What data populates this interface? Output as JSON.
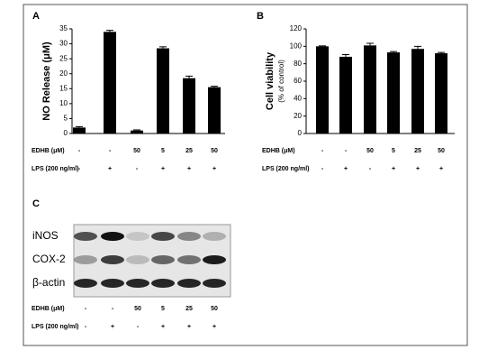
{
  "chart_data": [
    {
      "type": "bar",
      "label": "A",
      "ylabel": "NO Release (μM)",
      "categories": [
        null,
        null,
        null,
        null,
        null,
        null
      ],
      "values": [
        2,
        34,
        1,
        28.5,
        18.5,
        15.5
      ],
      "errors": [
        0.3,
        0.5,
        0.2,
        0.5,
        0.7,
        0.3
      ],
      "color": "#000000",
      "ylim": [
        0,
        35
      ],
      "yticks": [
        0,
        5,
        10,
        15,
        20,
        25,
        30,
        35
      ],
      "treatments": [
        {
          "name": "EDHB (μM)",
          "values": [
            "-",
            "-",
            "50",
            "5",
            "25",
            "50"
          ]
        },
        {
          "name": "LPS (200 ng/ml)",
          "values": [
            "-",
            "+",
            "-",
            "+",
            "+",
            "+"
          ]
        }
      ]
    },
    {
      "type": "bar",
      "label": "B",
      "ylabel": "Cell viability",
      "ylabel_sub": "(% of control)",
      "categories": [
        null,
        null,
        null,
        null,
        null,
        null
      ],
      "values": [
        100,
        88,
        101,
        93,
        97,
        92
      ],
      "errors": [
        0.5,
        2.5,
        2.5,
        1,
        3,
        1
      ],
      "color": "#000000",
      "ylim": [
        0,
        120
      ],
      "yticks": [
        0,
        20,
        40,
        60,
        80,
        100,
        120
      ],
      "treatments": [
        {
          "name": "EDHB (μM)",
          "values": [
            "-",
            "-",
            "50",
            "5",
            "25",
            "50"
          ]
        },
        {
          "name": "LPS (200 ng/ml)",
          "values": [
            "-",
            "+",
            "-",
            "+",
            "+",
            "+"
          ]
        }
      ]
    }
  ],
  "blot": {
    "label": "C",
    "rows": [
      "iNOS",
      "COX-2",
      "β-actin"
    ],
    "treatments": [
      {
        "name": "EDHB (μM)",
        "values": [
          "-",
          "-",
          "50",
          "5",
          "25",
          "50"
        ]
      },
      {
        "name": "LPS (200 ng/ml)",
        "values": [
          "-",
          "+",
          "-",
          "+",
          "+",
          "+"
        ]
      }
    ]
  }
}
